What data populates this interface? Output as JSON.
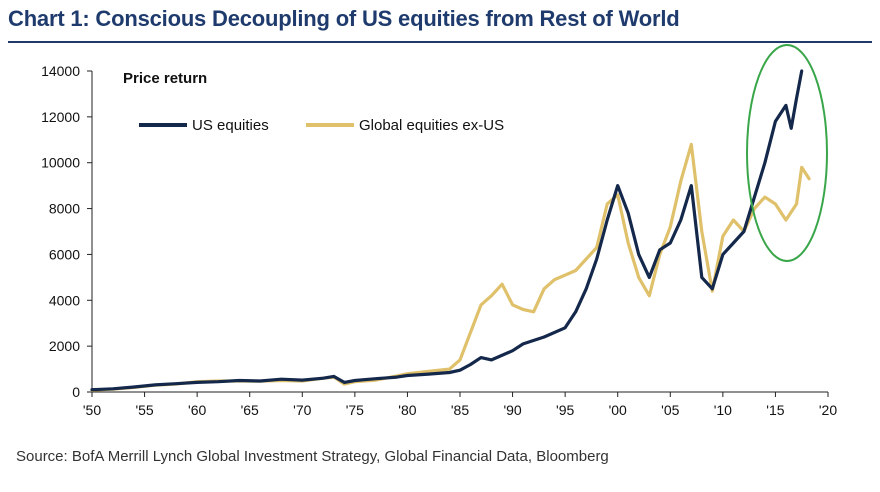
{
  "page": {
    "title": "Chart 1: Conscious Decoupling of US equities from Rest of World",
    "source": "Source:   BofA Merrill Lynch Global Investment Strategy, Global Financial Data, Bloomberg"
  },
  "chart_data": {
    "type": "line",
    "title": "Chart 1: Conscious Decoupling of US equities from Rest of World",
    "subtitle": "Price return",
    "xlabel": "",
    "ylabel": "",
    "xlim": [
      1950,
      2020
    ],
    "ylim": [
      0,
      14000
    ],
    "x_ticks": [
      1950,
      1955,
      1960,
      1965,
      1970,
      1975,
      1980,
      1985,
      1990,
      1995,
      2000,
      2005,
      2010,
      2015,
      2020
    ],
    "x_tick_labels": [
      "'50",
      "'55",
      "'60",
      "'65",
      "'70",
      "'75",
      "'80",
      "'85",
      "'90",
      "'95",
      "'00",
      "'05",
      "'10",
      "'15",
      "'20"
    ],
    "y_ticks": [
      0,
      2000,
      4000,
      6000,
      8000,
      10000,
      12000,
      14000
    ],
    "y_tick_labels": [
      "0",
      "2000",
      "4000",
      "6000",
      "8000",
      "10000",
      "12000",
      "14000"
    ],
    "legend_position": "top-left",
    "grid": false,
    "series": [
      {
        "name": "US equities",
        "color": "#14284b",
        "points": [
          [
            1950,
            100
          ],
          [
            1952,
            140
          ],
          [
            1954,
            220
          ],
          [
            1956,
            310
          ],
          [
            1958,
            360
          ],
          [
            1960,
            420
          ],
          [
            1962,
            450
          ],
          [
            1964,
            500
          ],
          [
            1966,
            480
          ],
          [
            1968,
            560
          ],
          [
            1970,
            520
          ],
          [
            1972,
            600
          ],
          [
            1973,
            680
          ],
          [
            1974,
            420
          ],
          [
            1975,
            500
          ],
          [
            1977,
            580
          ],
          [
            1979,
            650
          ],
          [
            1980,
            720
          ],
          [
            1982,
            780
          ],
          [
            1984,
            850
          ],
          [
            1985,
            950
          ],
          [
            1986,
            1200
          ],
          [
            1987,
            1500
          ],
          [
            1988,
            1400
          ],
          [
            1990,
            1800
          ],
          [
            1991,
            2100
          ],
          [
            1993,
            2400
          ],
          [
            1995,
            2800
          ],
          [
            1996,
            3500
          ],
          [
            1997,
            4500
          ],
          [
            1998,
            5800
          ],
          [
            1999,
            7500
          ],
          [
            2000,
            9000
          ],
          [
            2001,
            7800
          ],
          [
            2002,
            6000
          ],
          [
            2003,
            5000
          ],
          [
            2004,
            6200
          ],
          [
            2005,
            6500
          ],
          [
            2006,
            7500
          ],
          [
            2007,
            9000
          ],
          [
            2008,
            5000
          ],
          [
            2009,
            4500
          ],
          [
            2010,
            6000
          ],
          [
            2011,
            6500
          ],
          [
            2012,
            7000
          ],
          [
            2013,
            8500
          ],
          [
            2014,
            10000
          ],
          [
            2015,
            11800
          ],
          [
            2016,
            12500
          ],
          [
            2016.5,
            11500
          ],
          [
            2017,
            12800
          ],
          [
            2017.5,
            14000
          ]
        ]
      },
      {
        "name": "Global equities ex-US",
        "color": "#e0c16b",
        "points": [
          [
            1950,
            80
          ],
          [
            1952,
            120
          ],
          [
            1954,
            200
          ],
          [
            1956,
            300
          ],
          [
            1958,
            350
          ],
          [
            1960,
            450
          ],
          [
            1962,
            480
          ],
          [
            1964,
            480
          ],
          [
            1966,
            470
          ],
          [
            1968,
            500
          ],
          [
            1970,
            480
          ],
          [
            1972,
            600
          ],
          [
            1973,
            650
          ],
          [
            1974,
            350
          ],
          [
            1975,
            450
          ],
          [
            1977,
            520
          ],
          [
            1979,
            700
          ],
          [
            1980,
            800
          ],
          [
            1982,
            900
          ],
          [
            1984,
            1000
          ],
          [
            1985,
            1400
          ],
          [
            1986,
            2600
          ],
          [
            1987,
            3800
          ],
          [
            1988,
            4200
          ],
          [
            1989,
            4700
          ],
          [
            1990,
            3800
          ],
          [
            1991,
            3600
          ],
          [
            1992,
            3500
          ],
          [
            1993,
            4500
          ],
          [
            1994,
            4900
          ],
          [
            1995,
            5100
          ],
          [
            1996,
            5300
          ],
          [
            1997,
            5800
          ],
          [
            1998,
            6300
          ],
          [
            1999,
            8200
          ],
          [
            2000,
            8600
          ],
          [
            2001,
            6500
          ],
          [
            2002,
            5000
          ],
          [
            2003,
            4200
          ],
          [
            2004,
            6000
          ],
          [
            2005,
            7200
          ],
          [
            2006,
            9200
          ],
          [
            2007,
            10800
          ],
          [
            2008,
            7000
          ],
          [
            2009,
            4400
          ],
          [
            2010,
            6800
          ],
          [
            2011,
            7500
          ],
          [
            2012,
            7000
          ],
          [
            2013,
            8000
          ],
          [
            2014,
            8500
          ],
          [
            2015,
            8200
          ],
          [
            2016,
            7500
          ],
          [
            2017,
            8200
          ],
          [
            2017.5,
            9800
          ],
          [
            2018.2,
            9300
          ]
        ]
      }
    ]
  }
}
